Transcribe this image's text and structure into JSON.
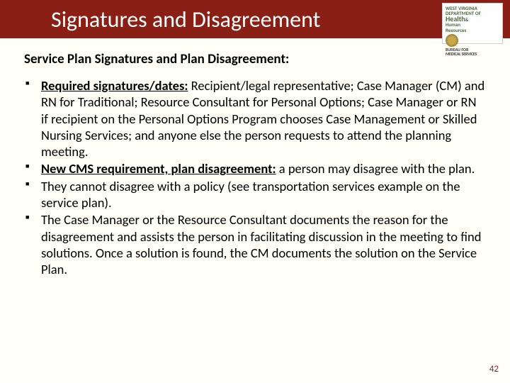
{
  "colors": {
    "title_bar_bg": "#8a2015",
    "title_text": "#ffffff",
    "body_bg": "#fffef7",
    "body_text": "#000000",
    "page_num_color": "#9a1c1c",
    "logo_green": "#4a6a3a"
  },
  "typography": {
    "font_family": "Calibri",
    "title_fontsize": 32,
    "subtitle_fontsize": 19,
    "body_fontsize": 18.5,
    "page_num_fontsize": 13
  },
  "title": "Signatures and Disagreement",
  "logo": {
    "line1": "WEST VIRGINIA DEPARTMENT OF",
    "line2": "Health",
    "amp": "&",
    "line3": "Human",
    "line3b": "Resources",
    "line4": "BUREAU FOR",
    "line5": "MEDICAL SERVICES"
  },
  "subtitle": "Service Plan Signatures and Plan Disagreement:",
  "bullets": {
    "b1_lead": "Required signatures/dates:",
    "b1_rest": " Recipient/legal representative; Case Manager (CM) and RN for Traditional; Resource Consultant for Personal Options; Case Manager or RN if recipient on the Personal Options Program chooses Case Management or Skilled Nursing Services; and anyone else the person requests to attend the planning meeting.",
    "b2_lead": "New CMS requirement, plan disagreement:",
    "b2_rest": " a person may disagree with the plan.",
    "b3": "They cannot disagree with a policy (see transportation services example on the service plan).",
    "b4": "The Case Manager or the Resource Consultant documents the reason for the disagreement and assists the person in facilitating discussion in the meeting to find solutions. Once a solution is found, the CM documents the solution on the Service Plan."
  },
  "page_number": "42"
}
